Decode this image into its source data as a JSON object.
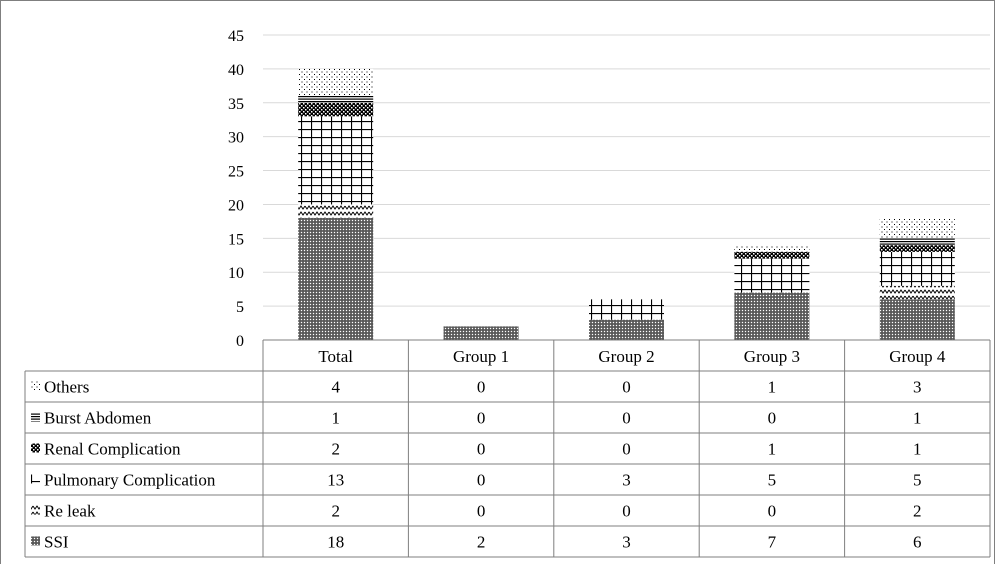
{
  "chart_data": {
    "type": "bar",
    "stacked": true,
    "categories": [
      "Total",
      "Group 1",
      "Group 2",
      "Group 3",
      "Group 4"
    ],
    "ylim": [
      0,
      45
    ],
    "yticks": [
      "0",
      "5",
      "10",
      "15",
      "20",
      "25",
      "30",
      "35",
      "40",
      "45"
    ],
    "grid": true,
    "series": [
      {
        "name": "SSI",
        "values": [
          18,
          2,
          3,
          7,
          6
        ],
        "pattern": "dense-dots",
        "icon": "dense-dots-swatch"
      },
      {
        "name": "Re leak",
        "values": [
          2,
          0,
          0,
          0,
          2
        ],
        "pattern": "zigzag",
        "icon": "zigzag-swatch"
      },
      {
        "name": "Pulmonary Complication",
        "values": [
          13,
          0,
          3,
          5,
          5
        ],
        "pattern": "grid",
        "icon": "grid-swatch"
      },
      {
        "name": "Renal Complication",
        "values": [
          2,
          0,
          0,
          1,
          1
        ],
        "pattern": "checker",
        "icon": "checker-swatch"
      },
      {
        "name": "Burst Abdomen",
        "values": [
          1,
          0,
          0,
          0,
          1
        ],
        "pattern": "horizontal-lines",
        "icon": "lines-swatch"
      },
      {
        "name": "Others",
        "values": [
          4,
          0,
          0,
          1,
          3
        ],
        "pattern": "sparse-dots",
        "icon": "sparse-dots-swatch"
      }
    ],
    "table_rows": [
      {
        "label": "Others",
        "icon": "sparse-dots-swatch",
        "values": [
          "4",
          "0",
          "0",
          "1",
          "3"
        ]
      },
      {
        "label": "Burst Abdomen",
        "icon": "lines-swatch",
        "values": [
          "1",
          "0",
          "0",
          "0",
          "1"
        ]
      },
      {
        "label": "Renal Complication",
        "icon": "checker-swatch",
        "values": [
          "2",
          "0",
          "0",
          "1",
          "1"
        ]
      },
      {
        "label": "Pulmonary Complication",
        "icon": "grid-swatch",
        "values": [
          "13",
          "0",
          "3",
          "5",
          "5"
        ]
      },
      {
        "label": "Re leak",
        "icon": "zigzag-swatch",
        "values": [
          "2",
          "0",
          "0",
          "0",
          "2"
        ]
      },
      {
        "label": "SSI",
        "icon": "dense-dots-swatch",
        "values": [
          "18",
          "2",
          "3",
          "7",
          "6"
        ]
      }
    ],
    "colors": {
      "ink": "#000000",
      "grid": "#d9d9d9",
      "border": "#7f7f7f"
    }
  }
}
